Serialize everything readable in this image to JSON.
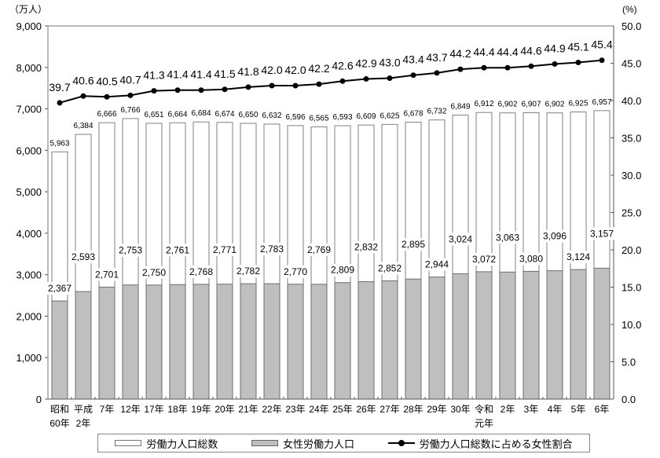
{
  "chart_data": {
    "type": "bar+line",
    "title": "",
    "left_axis": {
      "unit_label": "（万人）",
      "ticks": [
        "0",
        "1,000",
        "2,000",
        "3,000",
        "4,000",
        "5,000",
        "6,000",
        "7,000",
        "8,000",
        "9,000"
      ],
      "range": [
        0,
        9000
      ]
    },
    "right_axis": {
      "unit_label": "(%)",
      "ticks": [
        "0.0",
        "5.0",
        "10.0",
        "15.0",
        "20.0",
        "25.0",
        "30.0",
        "35.0",
        "40.0",
        "45.0",
        "50.0"
      ],
      "range": [
        0,
        50
      ]
    },
    "categories": [
      [
        "昭和",
        "60年"
      ],
      [
        "平成",
        "2年"
      ],
      [
        "7年"
      ],
      [
        "12年"
      ],
      [
        "17年"
      ],
      [
        "18年"
      ],
      [
        "19年"
      ],
      [
        "20年"
      ],
      [
        "21年"
      ],
      [
        "22年"
      ],
      [
        "23年"
      ],
      [
        "24年"
      ],
      [
        "25年"
      ],
      [
        "26年"
      ],
      [
        "27年"
      ],
      [
        "28年"
      ],
      [
        "29年"
      ],
      [
        "30年"
      ],
      [
        "令和",
        "元年"
      ],
      [
        "2年"
      ],
      [
        "3年"
      ],
      [
        "4年"
      ],
      [
        "5年"
      ],
      [
        "6年"
      ]
    ],
    "series": [
      {
        "name": "労働力人口総数",
        "type": "bar",
        "axis": "left",
        "color": "#ffffff",
        "values": [
          5963,
          6384,
          6666,
          6766,
          6651,
          6664,
          6684,
          6674,
          6650,
          6632,
          6596,
          6565,
          6593,
          6609,
          6625,
          6678,
          6732,
          6849,
          6912,
          6902,
          6907,
          6902,
          6925,
          6957
        ],
        "labels": [
          "5,963",
          "6,384",
          "6,666",
          "6,766",
          "6,651",
          "6,664",
          "6,684",
          "6,674",
          "6,650",
          "6,632",
          "6,596",
          "6,565",
          "6,593",
          "6,609",
          "6,625",
          "6,678",
          "6,732",
          "6,849",
          "6,912",
          "6,902",
          "6,907",
          "6,902",
          "6,925",
          "6,957"
        ]
      },
      {
        "name": "女性労働力人口",
        "type": "bar",
        "axis": "left",
        "color": "#bfbfbf",
        "values": [
          2367,
          2593,
          2701,
          2753,
          2750,
          2761,
          2768,
          2771,
          2782,
          2783,
          2770,
          2769,
          2809,
          2832,
          2852,
          2895,
          2944,
          3024,
          3072,
          3063,
          3080,
          3096,
          3124,
          3157
        ],
        "labels": [
          "2,367",
          "2,593",
          "2,701",
          "2,753",
          "2,750",
          "2,761",
          "2,768",
          "2,771",
          "2,782",
          "2,783",
          "2,770",
          "2,769",
          "2,809",
          "2,832",
          "2,852",
          "2,895",
          "2,944",
          "3,024",
          "3,072",
          "3,063",
          "3,080",
          "3,096",
          "3,124",
          "3,157"
        ]
      },
      {
        "name": "労働力人口総数に占める女性割合",
        "type": "line",
        "axis": "right",
        "color": "#000000",
        "values": [
          39.7,
          40.6,
          40.5,
          40.7,
          41.3,
          41.4,
          41.4,
          41.5,
          41.8,
          42.0,
          42.0,
          42.2,
          42.6,
          42.9,
          43.0,
          43.4,
          43.7,
          44.2,
          44.4,
          44.4,
          44.6,
          44.9,
          45.1,
          45.4
        ],
        "labels": [
          "39.7",
          "40.6",
          "40.5",
          "40.7",
          "41.3",
          "41.4",
          "41.4",
          "41.5",
          "41.8",
          "42.0",
          "42.0",
          "42.2",
          "42.6",
          "42.9",
          "43.0",
          "43.4",
          "43.7",
          "44.2",
          "44.4",
          "44.4",
          "44.6",
          "44.9",
          "45.1",
          "45.4"
        ]
      }
    ],
    "legend_position": "bottom",
    "grid": false
  },
  "legend": {
    "item1": "労働力人口総数",
    "item2": "女性労働力人口",
    "item3": "労働力人口総数に占める女性割合"
  }
}
